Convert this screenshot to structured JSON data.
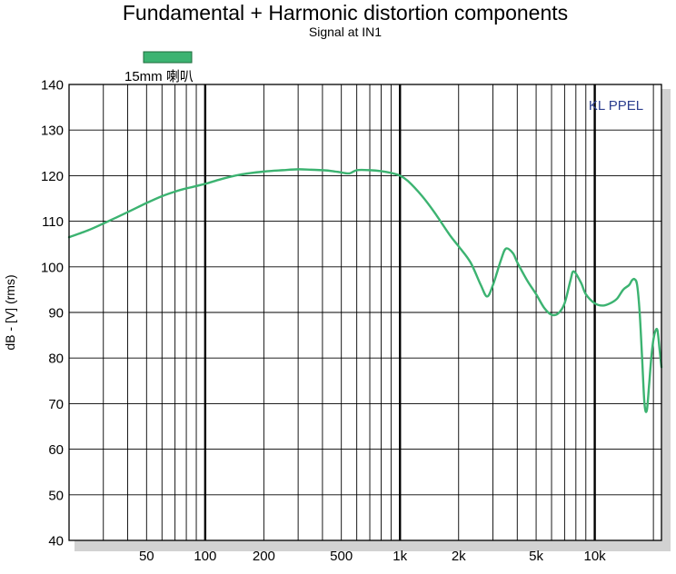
{
  "chart_data": {
    "type": "line",
    "title": "Fundamental + Harmonic distortion components",
    "subtitle": "Signal at IN1",
    "ylabel": "dB - [V]  (rms)",
    "xlabel": "",
    "x_scale": "log",
    "xlim": [
      20,
      22000
    ],
    "ylim": [
      40,
      140
    ],
    "grid": true,
    "legend_position": "top-left",
    "x_tick_labels": [
      {
        "value": 50,
        "label": "50"
      },
      {
        "value": 100,
        "label": "100"
      },
      {
        "value": 200,
        "label": "200"
      },
      {
        "value": 500,
        "label": "500"
      },
      {
        "value": 1000,
        "label": "1k"
      },
      {
        "value": 2000,
        "label": "2k"
      },
      {
        "value": 5000,
        "label": "5k"
      },
      {
        "value": 10000,
        "label": "10k"
      }
    ],
    "y_ticks": [
      40,
      50,
      60,
      70,
      80,
      90,
      100,
      110,
      120,
      130,
      140
    ],
    "annotation": "KL PPEL",
    "series": [
      {
        "name": "15mm 喇叭",
        "color": "#3cb371",
        "x": [
          20,
          25,
          30,
          40,
          50,
          60,
          70,
          80,
          100,
          120,
          150,
          200,
          250,
          300,
          350,
          400,
          450,
          500,
          550,
          600,
          700,
          800,
          900,
          1000,
          1100,
          1300,
          1500,
          1800,
          2000,
          2300,
          2600,
          2800,
          3000,
          3300,
          3500,
          3800,
          4000,
          4500,
          5000,
          5500,
          6000,
          6500,
          7000,
          7500,
          7800,
          8500,
          9000,
          10000,
          11000,
          12000,
          13000,
          14000,
          15000,
          15500,
          16000,
          16500,
          17000,
          17500,
          18000,
          18500,
          19000,
          19500,
          20000,
          20500,
          21000,
          21500,
          22000
        ],
        "y": [
          106.5,
          108,
          109.5,
          112,
          114,
          115.5,
          116.5,
          117.2,
          118.2,
          119.2,
          120.2,
          120.9,
          121.2,
          121.4,
          121.3,
          121.2,
          121,
          120.7,
          120.5,
          121.2,
          121.2,
          121,
          120.6,
          120,
          118.8,
          115.5,
          112,
          107,
          104.5,
          101,
          96,
          93.5,
          96,
          101.5,
          104,
          103,
          101,
          97,
          94,
          91,
          89.5,
          89.8,
          92,
          97,
          99,
          96.5,
          94,
          92,
          91.5,
          92,
          93,
          95,
          96,
          97,
          97.3,
          96,
          90,
          80,
          70,
          68.5,
          74,
          80,
          84,
          86,
          86,
          82,
          78
        ]
      }
    ]
  }
}
